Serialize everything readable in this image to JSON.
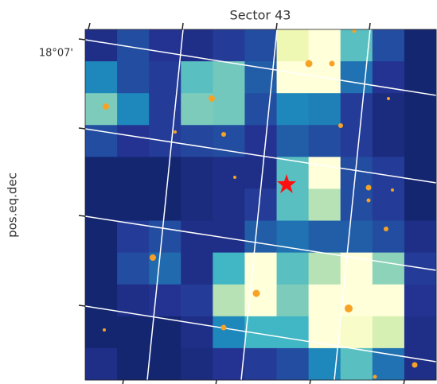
{
  "chart_data": {
    "type": "heatmap",
    "title": "Sector 43",
    "ylabel": "pos.eq.dec",
    "ytick_labels": [
      "18°07'"
    ],
    "zlim": [
      0,
      1
    ],
    "colormap": [
      "#081d58",
      "#253494",
      "#225ea8",
      "#1d91c0",
      "#41b6c4",
      "#7fcdbb",
      "#c7e9b4",
      "#edf8b1",
      "#ffffd9"
    ],
    "values": [
      [
        0.1,
        0.2,
        0.12,
        0.1,
        0.15,
        0.2,
        0.88,
        1,
        0.55,
        0.2,
        0.05
      ],
      [
        0.35,
        0.2,
        0.15,
        0.55,
        0.6,
        0.25,
        1,
        1,
        0.3,
        0.12,
        0.05
      ],
      [
        0.62,
        0.35,
        0.15,
        0.62,
        0.6,
        0.2,
        0.35,
        0.33,
        0.15,
        0.08,
        0.05
      ],
      [
        0.2,
        0.12,
        0.15,
        0.18,
        0.2,
        0.12,
        0.25,
        0.2,
        0.15,
        0.08,
        0.05
      ],
      [
        0.05,
        0.05,
        0.05,
        0.08,
        0.1,
        0.1,
        0.55,
        1,
        0.2,
        0.15,
        0.05
      ],
      [
        0.05,
        0.05,
        0.05,
        0.08,
        0.1,
        0.15,
        0.55,
        0.72,
        0.2,
        0.15,
        0.05
      ],
      [
        0.05,
        0.15,
        0.2,
        0.1,
        0.1,
        0.25,
        0.3,
        0.25,
        0.25,
        0.2,
        0.1
      ],
      [
        0.05,
        0.2,
        0.28,
        0.1,
        0.5,
        1,
        0.55,
        0.72,
        1,
        0.65,
        0.15
      ],
      [
        0.05,
        0.1,
        0.12,
        0.15,
        0.72,
        1,
        0.62,
        1,
        1,
        1,
        0.12
      ],
      [
        0.05,
        0.05,
        0.05,
        0.1,
        0.35,
        0.5,
        0.5,
        1,
        0.95,
        0.8,
        0.1
      ],
      [
        0.1,
        0.05,
        0.05,
        0.08,
        0.12,
        0.15,
        0.2,
        0.35,
        0.55,
        0.3,
        0.1
      ]
    ]
  }
}
